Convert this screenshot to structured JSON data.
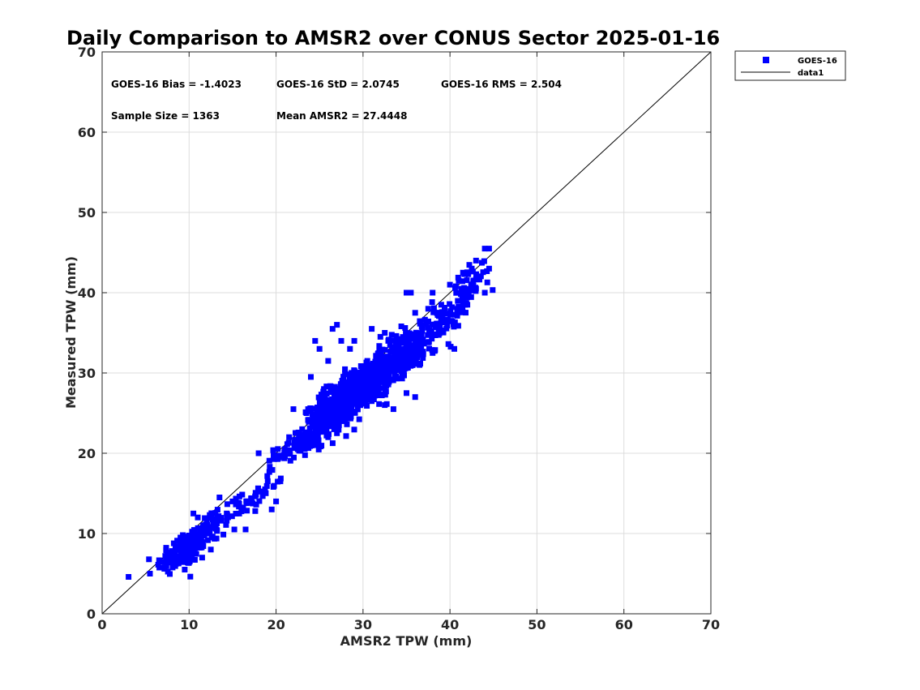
{
  "chart_data": {
    "type": "scatter",
    "title": "Daily Comparison to AMSR2 over CONUS Sector 2025-01-16",
    "xlabel": "AMSR2 TPW (mm)",
    "ylabel": "Measured TPW (mm)",
    "xlim": [
      0,
      70
    ],
    "ylim": [
      0,
      70
    ],
    "xticks": [
      "0",
      "10",
      "20",
      "30",
      "40",
      "50",
      "60",
      "70"
    ],
    "yticks": [
      "0",
      "10",
      "20",
      "30",
      "40",
      "50",
      "60",
      "70"
    ],
    "grid": true,
    "legend_position": "outside-top-right",
    "stats": {
      "bias": "GOES-16 Bias = -1.4023",
      "std": "GOES-16 StD = 2.0745",
      "rms": "GOES-16 RMS = 2.504",
      "sample": "Sample Size = 1363",
      "mean": "Mean AMSR2 = 27.4448"
    },
    "series": [
      {
        "name": "GOES-16",
        "type": "scatter",
        "marker": "square",
        "color": "#0000ff",
        "clusters": [
          {
            "x": 9.5,
            "y": 8.0,
            "sx": 1.6,
            "sy": 1.5,
            "n": 130
          },
          {
            "x": 12.0,
            "y": 10.5,
            "sx": 1.2,
            "sy": 1.4,
            "n": 50
          },
          {
            "x": 15.5,
            "y": 13.0,
            "sx": 1.5,
            "sy": 1.3,
            "n": 40
          },
          {
            "x": 18.5,
            "y": 15.5,
            "sx": 1.2,
            "sy": 1.0,
            "n": 18
          },
          {
            "x": 22.5,
            "y": 21.0,
            "sx": 1.3,
            "sy": 1.2,
            "n": 60
          },
          {
            "x": 26.5,
            "y": 25.0,
            "sx": 1.7,
            "sy": 1.8,
            "n": 260
          },
          {
            "x": 30.0,
            "y": 28.5,
            "sx": 2.0,
            "sy": 1.7,
            "n": 420
          },
          {
            "x": 34.0,
            "y": 32.0,
            "sx": 1.8,
            "sy": 1.7,
            "n": 220
          },
          {
            "x": 38.5,
            "y": 36.0,
            "sx": 2.0,
            "sy": 1.8,
            "n": 110
          },
          {
            "x": 42.0,
            "y": 40.5,
            "sx": 1.0,
            "sy": 1.5,
            "n": 55
          }
        ],
        "points": [
          [
            5.5,
            5.0
          ],
          [
            7.0,
            6.5
          ],
          [
            10.5,
            12.5
          ],
          [
            11.0,
            12.0
          ],
          [
            13.0,
            12.5
          ],
          [
            13.5,
            14.5
          ],
          [
            15.0,
            14.0
          ],
          [
            16.5,
            10.5
          ],
          [
            15.2,
            10.5
          ],
          [
            18.0,
            20.0
          ],
          [
            19.5,
            13.0
          ],
          [
            20.0,
            14.0
          ],
          [
            20.5,
            16.5
          ],
          [
            20.5,
            19.5
          ],
          [
            21.0,
            20.5
          ],
          [
            24.5,
            34.0
          ],
          [
            26.5,
            35.5
          ],
          [
            27.0,
            36.0
          ],
          [
            27.5,
            34.0
          ],
          [
            25.0,
            33.0
          ],
          [
            29.0,
            34.0
          ],
          [
            31.0,
            35.5
          ],
          [
            32.5,
            35.0
          ],
          [
            35.0,
            40.0
          ],
          [
            35.5,
            40.0
          ],
          [
            37.5,
            38.0
          ],
          [
            38.0,
            40.0
          ],
          [
            39.0,
            38.5
          ],
          [
            40.5,
            33.0
          ],
          [
            41.0,
            41.5
          ],
          [
            42.5,
            43.0
          ],
          [
            43.0,
            40.5
          ],
          [
            44.0,
            45.5
          ],
          [
            44.5,
            45.5
          ],
          [
            44.5,
            43.0
          ],
          [
            44.0,
            40.0
          ],
          [
            42.0,
            38.5
          ],
          [
            38.0,
            32.5
          ],
          [
            36.0,
            27.0
          ],
          [
            33.5,
            25.5
          ],
          [
            35.0,
            27.5
          ],
          [
            32.5,
            26.0
          ],
          [
            31.0,
            26.5
          ],
          [
            34.5,
            30.0
          ],
          [
            36.5,
            31.0
          ],
          [
            27.0,
            22.5
          ],
          [
            26.0,
            22.0
          ],
          [
            25.5,
            28.0
          ],
          [
            23.0,
            23.0
          ],
          [
            22.0,
            25.5
          ],
          [
            28.0,
            26.0
          ],
          [
            24.0,
            29.5
          ],
          [
            26.0,
            31.5
          ],
          [
            28.5,
            33.0
          ],
          [
            30.5,
            31.5
          ],
          [
            32.0,
            34.5
          ],
          [
            36.0,
            37.5
          ],
          [
            40.0,
            41.0
          ],
          [
            41.5,
            42.5
          ],
          [
            43.0,
            44.0
          ],
          [
            8.0,
            7.5
          ],
          [
            9.0,
            9.5
          ],
          [
            11.5,
            7.0
          ],
          [
            12.5,
            8.0
          ],
          [
            9.5,
            5.5
          ],
          [
            22.5,
            20.5
          ],
          [
            24.0,
            21.5
          ],
          [
            23.5,
            25.0
          ],
          [
            21.5,
            22.0
          ],
          [
            26.5,
            23.5
          ]
        ]
      },
      {
        "name": "data1",
        "type": "line",
        "color": "#000000",
        "x": [
          0,
          70
        ],
        "y": [
          0,
          70
        ]
      }
    ]
  }
}
